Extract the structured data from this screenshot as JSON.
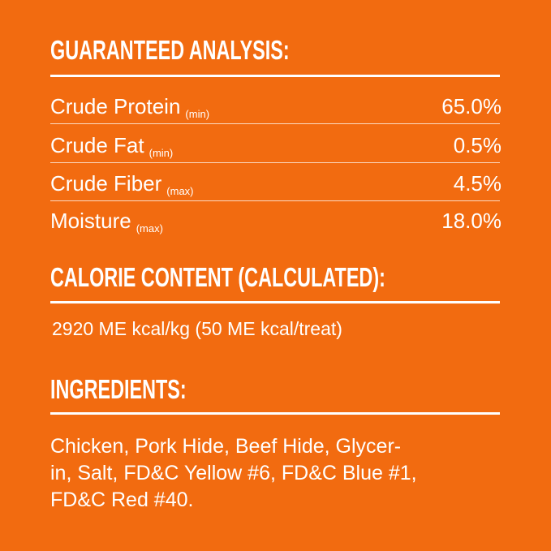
{
  "analysis": {
    "heading": "GUARANTEED ANALYSIS:",
    "rows": [
      {
        "label": "Crude Protein",
        "qualifier": "(min)",
        "value": "65.0%"
      },
      {
        "label": "Crude Fat",
        "qualifier": "(min)",
        "value": "0.5%"
      },
      {
        "label": "Crude Fiber",
        "qualifier": "(max)",
        "value": "4.5%"
      },
      {
        "label": "Moisture",
        "qualifier": "(max)",
        "value": "18.0%"
      }
    ]
  },
  "calorie": {
    "heading": "CALORIE CONTENT (CALCULATED):",
    "text": "2920 ME kcal/kg (50 ME kcal/treat)"
  },
  "ingredients": {
    "heading": "INGREDIENTS:",
    "lines": [
      "Chicken, Pork Hide, Beef Hide, Glycer-",
      "in, Salt, FD&C Yellow #6, FD&C Blue #1,",
      "FD&C Red #40."
    ]
  },
  "colors": {
    "background": "#F26B10",
    "text": "#FFFFFF"
  }
}
